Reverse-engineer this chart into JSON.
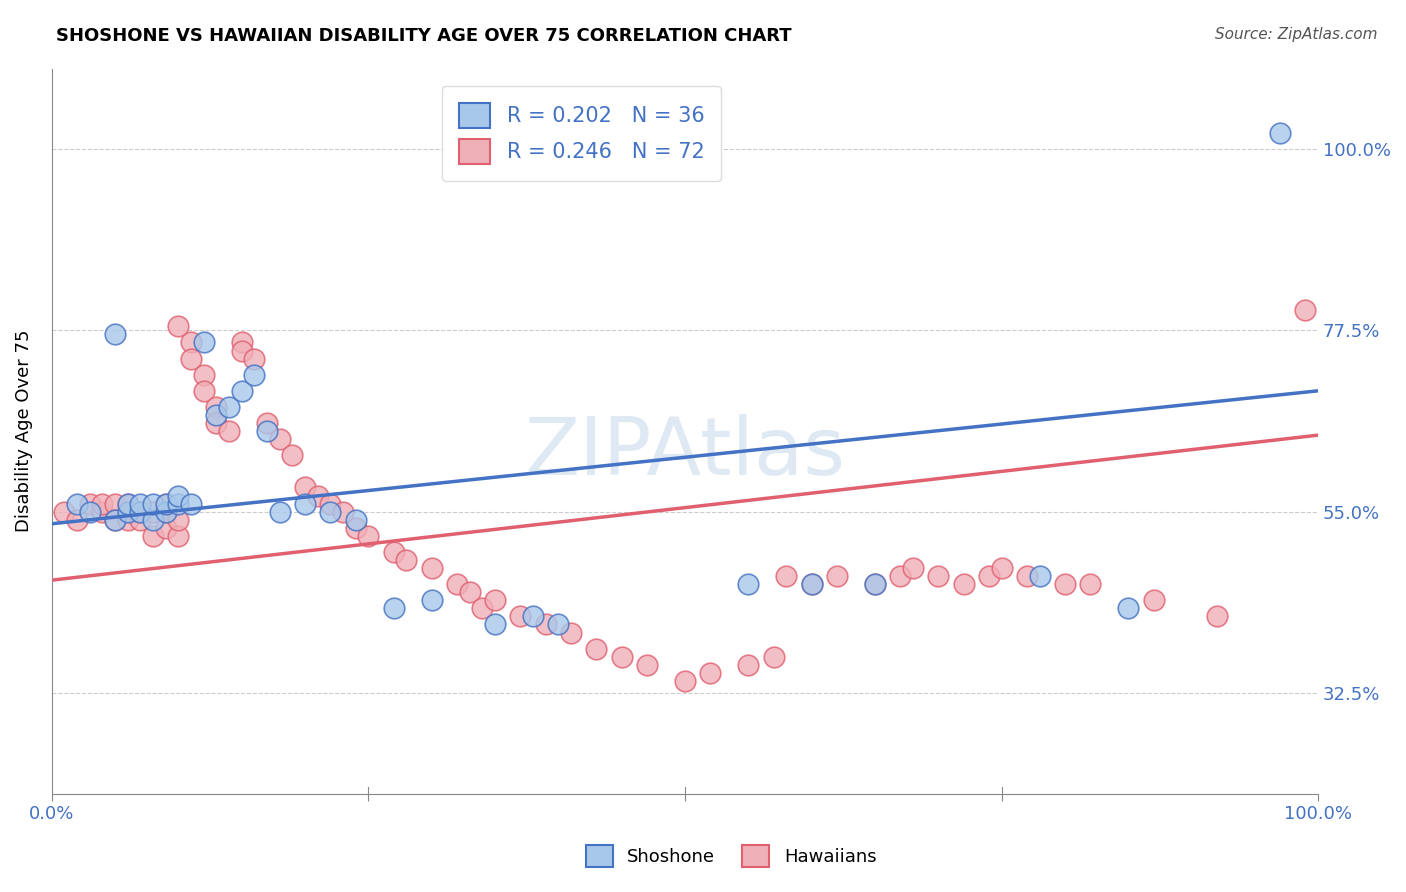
{
  "title": "SHOSHONE VS HAWAIIAN DISABILITY AGE OVER 75 CORRELATION CHART",
  "source": "Source: ZipAtlas.com",
  "ylabel": "Disability Age Over 75",
  "ytick_labels": [
    "32.5%",
    "55.0%",
    "77.5%",
    "100.0%"
  ],
  "ytick_values": [
    0.325,
    0.55,
    0.775,
    1.0
  ],
  "xlim": [
    0.0,
    1.0
  ],
  "ylim": [
    0.2,
    1.1
  ],
  "shoshone_R": 0.202,
  "shoshone_N": 36,
  "hawaiian_R": 0.246,
  "hawaiian_N": 72,
  "shoshone_color": "#a8c8ea",
  "hawaiian_color": "#f0b0b8",
  "shoshone_line_color": "#4472c4",
  "hawaiian_line_color": "#e06070",
  "legend_r_color": "#4472c4",
  "shoshone_x": [
    0.02,
    0.03,
    0.05,
    0.05,
    0.06,
    0.06,
    0.07,
    0.07,
    0.08,
    0.08,
    0.09,
    0.09,
    0.1,
    0.1,
    0.11,
    0.12,
    0.13,
    0.14,
    0.15,
    0.16,
    0.17,
    0.18,
    0.2,
    0.22,
    0.24,
    0.27,
    0.3,
    0.35,
    0.38,
    0.4,
    0.55,
    0.6,
    0.65,
    0.78,
    0.85,
    0.97
  ],
  "shoshone_y": [
    0.56,
    0.55,
    0.54,
    0.77,
    0.55,
    0.56,
    0.55,
    0.56,
    0.54,
    0.56,
    0.55,
    0.56,
    0.56,
    0.57,
    0.56,
    0.76,
    0.67,
    0.68,
    0.7,
    0.72,
    0.65,
    0.55,
    0.56,
    0.55,
    0.54,
    0.43,
    0.44,
    0.41,
    0.42,
    0.41,
    0.46,
    0.46,
    0.46,
    0.47,
    0.43,
    1.02
  ],
  "hawaiian_x": [
    0.01,
    0.02,
    0.03,
    0.04,
    0.04,
    0.05,
    0.05,
    0.06,
    0.06,
    0.06,
    0.07,
    0.07,
    0.08,
    0.08,
    0.09,
    0.09,
    0.09,
    0.1,
    0.1,
    0.1,
    0.11,
    0.11,
    0.12,
    0.12,
    0.13,
    0.13,
    0.14,
    0.15,
    0.15,
    0.16,
    0.17,
    0.18,
    0.19,
    0.2,
    0.21,
    0.22,
    0.23,
    0.24,
    0.25,
    0.27,
    0.28,
    0.3,
    0.32,
    0.33,
    0.34,
    0.35,
    0.37,
    0.39,
    0.41,
    0.43,
    0.45,
    0.47,
    0.5,
    0.52,
    0.55,
    0.57,
    0.58,
    0.6,
    0.62,
    0.65,
    0.67,
    0.68,
    0.7,
    0.72,
    0.74,
    0.75,
    0.77,
    0.8,
    0.82,
    0.87,
    0.92,
    0.99
  ],
  "hawaiian_y": [
    0.55,
    0.54,
    0.56,
    0.55,
    0.56,
    0.56,
    0.54,
    0.55,
    0.54,
    0.56,
    0.55,
    0.54,
    0.52,
    0.55,
    0.53,
    0.55,
    0.56,
    0.52,
    0.54,
    0.78,
    0.76,
    0.74,
    0.72,
    0.7,
    0.68,
    0.66,
    0.65,
    0.76,
    0.75,
    0.74,
    0.66,
    0.64,
    0.62,
    0.58,
    0.57,
    0.56,
    0.55,
    0.53,
    0.52,
    0.5,
    0.49,
    0.48,
    0.46,
    0.45,
    0.43,
    0.44,
    0.42,
    0.41,
    0.4,
    0.38,
    0.37,
    0.36,
    0.34,
    0.35,
    0.36,
    0.37,
    0.47,
    0.46,
    0.47,
    0.46,
    0.47,
    0.48,
    0.47,
    0.46,
    0.47,
    0.48,
    0.47,
    0.46,
    0.46,
    0.44,
    0.42,
    0.8
  ]
}
